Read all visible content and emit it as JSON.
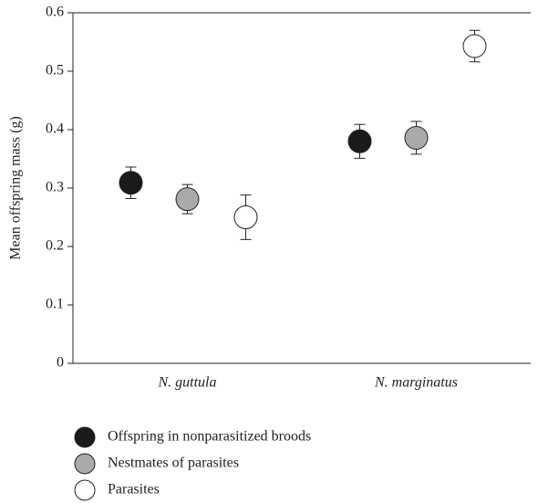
{
  "chart_data": {
    "type": "dot",
    "ylabel": "Mean offspring mass (g)",
    "categories": [
      "N. guttula",
      "N. marginatus"
    ],
    "series": [
      {
        "name": "Offspring in nonparasitized broods",
        "color": "#1a1a1a",
        "values": [
          0.309,
          0.38
        ],
        "errors": [
          0.027,
          0.029
        ]
      },
      {
        "name": "Nestmates of parasites",
        "color": "#aaaaaa",
        "values": [
          0.281,
          0.386
        ],
        "errors": [
          0.025,
          0.028
        ]
      },
      {
        "name": "Parasites",
        "color": "#ffffff",
        "values": [
          0.25,
          0.543
        ],
        "errors": [
          0.038,
          0.027
        ]
      }
    ],
    "ylim": [
      0,
      0.6
    ],
    "yticks": [
      0,
      0.1,
      0.2,
      0.3,
      0.4,
      0.5,
      0.6
    ],
    "grid": false
  }
}
